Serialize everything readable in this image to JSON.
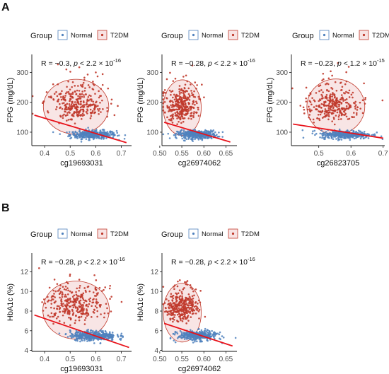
{
  "panel_labels": [
    "A",
    "B"
  ],
  "legend": {
    "title": "Group",
    "entries": [
      {
        "label": "Normal",
        "color": "#4f81bd"
      },
      {
        "label": "T2DM",
        "color": "#c0392b"
      }
    ]
  },
  "colors": {
    "normal": "#4f81bd",
    "t2dm": "#c0392b",
    "ellipse_fill": "#f6dcdc",
    "ellipse_stroke": "#c0392b",
    "regression": "#e8121a"
  },
  "chart_data": [
    {
      "type": "scatter",
      "panel": "A",
      "xlabel": "cg19693031",
      "ylabel": "FPG (mg/dL)",
      "stat": {
        "r": "R = −0.3, ",
        "p": "p",
        "rest": " < 2.2 × 10",
        "exp": "-16"
      },
      "xlim": [
        0.35,
        0.74
      ],
      "ylim": [
        55,
        360
      ],
      "xticks": [
        0.4,
        0.5,
        0.6,
        0.7
      ],
      "xtick_labels": [
        "0.4",
        "0.5",
        "0.6",
        "0.7"
      ],
      "yticks": [
        100,
        200,
        300
      ],
      "ytick_labels": [
        "100",
        "200",
        "300"
      ],
      "normal_cluster": {
        "x_center": 0.59,
        "x_sd": 0.045,
        "y_center": 92,
        "y_sd": 7,
        "n": 380
      },
      "t2dm_cluster": {
        "x_center": 0.52,
        "x_sd": 0.06,
        "y_center": 175,
        "y_sd": 45,
        "n": 320
      },
      "ellipse": {
        "cx": 0.523,
        "cy": 185,
        "rx": 0.128,
        "ry": 92
      },
      "regression": {
        "x": [
          0.36,
          0.72
        ],
        "y": [
          157,
          65
        ]
      },
      "grid": false
    },
    {
      "type": "scatter",
      "panel": "A",
      "xlabel": "cg26974062",
      "ylabel": "FPG (mg/dL)",
      "stat": {
        "r": "R = −0.28, ",
        "p": "p",
        "rest": " < 2.2 × 10",
        "exp": "-16"
      },
      "xlim": [
        0.505,
        0.675
      ],
      "ylim": [
        55,
        360
      ],
      "xticks": [
        0.5,
        0.55,
        0.6,
        0.65
      ],
      "xtick_labels": [
        "0.50",
        "0.55",
        "0.60",
        "0.65"
      ],
      "yticks": [
        100,
        200,
        300
      ],
      "ytick_labels": [
        "100",
        "200",
        "300"
      ],
      "normal_cluster": {
        "x_center": 0.585,
        "x_sd": 0.022,
        "y_center": 92,
        "y_sd": 7,
        "n": 380
      },
      "t2dm_cluster": {
        "x_center": 0.55,
        "x_sd": 0.018,
        "y_center": 170,
        "y_sd": 45,
        "n": 320
      },
      "ellipse": {
        "cx": 0.551,
        "cy": 182,
        "rx": 0.043,
        "ry": 93
      },
      "regression": {
        "x": [
          0.51,
          0.66
        ],
        "y": [
          133,
          67
        ]
      },
      "grid": false
    },
    {
      "type": "scatter",
      "panel": "A",
      "xlabel": "cg26823705",
      "ylabel": "FPG (mg/dL)",
      "stat": {
        "r": "R = −0.23, ",
        "p": "p",
        "rest": " < 1.2 × 10",
        "exp": "-15"
      },
      "xlim": [
        0.415,
        0.705
      ],
      "ylim": [
        55,
        360
      ],
      "xticks": [
        0.5,
        0.6,
        0.7
      ],
      "xtick_labels": [
        "0.5",
        "0.6",
        "0.7"
      ],
      "yticks": [
        100,
        200,
        300
      ],
      "ytick_labels": [
        "100",
        "200",
        "300"
      ],
      "normal_cluster": {
        "x_center": 0.585,
        "x_sd": 0.04,
        "y_center": 92,
        "y_sd": 7,
        "n": 380
      },
      "t2dm_cluster": {
        "x_center": 0.545,
        "x_sd": 0.04,
        "y_center": 170,
        "y_sd": 45,
        "n": 320
      },
      "ellipse": {
        "cx": 0.553,
        "cy": 185,
        "rx": 0.09,
        "ry": 93
      },
      "regression": {
        "x": [
          0.42,
          0.7
        ],
        "y": [
          127,
          80
        ]
      },
      "grid": false
    },
    {
      "type": "scatter",
      "panel": "B",
      "xlabel": "cg19693031",
      "ylabel": "HbA1c (%)",
      "stat": {
        "r": "R = −0.28, ",
        "p": "p",
        "rest": " < 2.2 × 10",
        "exp": "-16"
      },
      "xlim": [
        0.35,
        0.74
      ],
      "ylim": [
        3.9,
        13.9
      ],
      "xticks": [
        0.4,
        0.5,
        0.6,
        0.7
      ],
      "xtick_labels": [
        "0.4",
        "0.5",
        "0.6",
        "0.7"
      ],
      "yticks": [
        4,
        6,
        8,
        10,
        12
      ],
      "ytick_labels": [
        "4",
        "6",
        "8",
        "10",
        "12"
      ],
      "normal_cluster": {
        "x_center": 0.59,
        "x_sd": 0.045,
        "y_center": 5.5,
        "y_sd": 0.25,
        "n": 380
      },
      "t2dm_cluster": {
        "x_center": 0.52,
        "x_sd": 0.06,
        "y_center": 7.9,
        "y_sd": 1.4,
        "n": 320
      },
      "ellipse": {
        "cx": 0.523,
        "cy": 8.1,
        "rx": 0.13,
        "ry": 2.95
      },
      "regression": {
        "x": [
          0.36,
          0.73
        ],
        "y": [
          7.6,
          4.3
        ]
      },
      "grid": false
    },
    {
      "type": "scatter",
      "panel": "B",
      "xlabel": "cg26974062",
      "ylabel": "HbA1c (%)",
      "stat": {
        "r": "R = −0.28, ",
        "p": "p",
        "rest": " < 2.2 × 10",
        "exp": "-16"
      },
      "xlim": [
        0.505,
        0.675
      ],
      "ylim": [
        3.9,
        13.9
      ],
      "xticks": [
        0.5,
        0.55,
        0.6,
        0.65
      ],
      "xtick_labels": [
        "0.50",
        "0.55",
        "0.60",
        "0.65"
      ],
      "yticks": [
        4,
        6,
        8,
        10,
        12
      ],
      "ytick_labels": [
        "4",
        "6",
        "8",
        "10",
        "12"
      ],
      "normal_cluster": {
        "x_center": 0.585,
        "x_sd": 0.022,
        "y_center": 5.5,
        "y_sd": 0.25,
        "n": 380
      },
      "t2dm_cluster": {
        "x_center": 0.55,
        "x_sd": 0.018,
        "y_center": 7.8,
        "y_sd": 1.3,
        "n": 320
      },
      "ellipse": {
        "cx": 0.551,
        "cy": 7.85,
        "rx": 0.043,
        "ry": 3.0
      },
      "regression": {
        "x": [
          0.51,
          0.665
        ],
        "y": [
          6.75,
          4.45
        ]
      },
      "grid": false
    }
  ]
}
